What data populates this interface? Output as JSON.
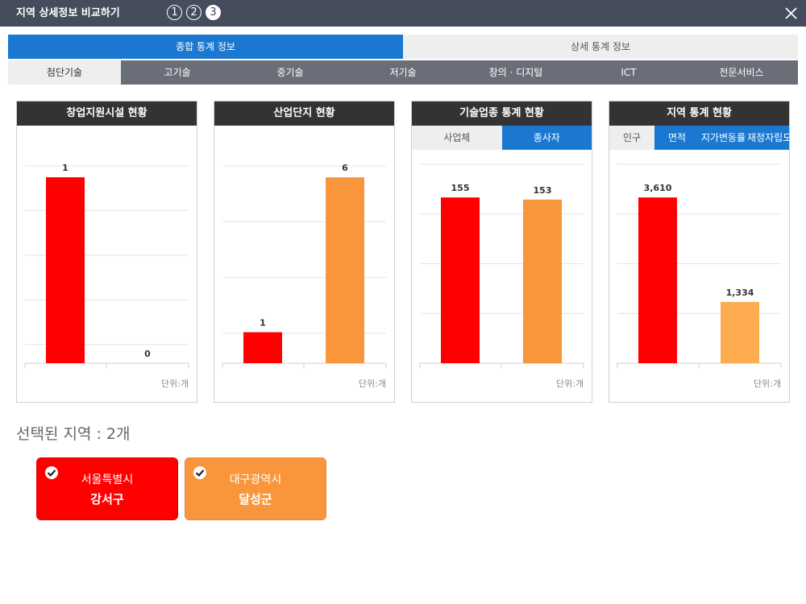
{
  "window": {
    "title": "지역 상세정보 비교하기",
    "steps": [
      "1",
      "2",
      "3"
    ],
    "active_step": 2
  },
  "main_tabs": [
    {
      "label": "종합 통계 정보",
      "active": true
    },
    {
      "label": "상세 통계 정보",
      "active": false
    }
  ],
  "tech_tabs": [
    {
      "label": "첨단기술",
      "active": true
    },
    {
      "label": "고기술",
      "active": false
    },
    {
      "label": "중기술",
      "active": false
    },
    {
      "label": "저기술",
      "active": false
    },
    {
      "label": "창의 · 디지털",
      "active": false
    },
    {
      "label": "ICT",
      "active": false
    },
    {
      "label": "전문서비스",
      "active": false
    }
  ],
  "colors": {
    "region1": "#ff0000",
    "region2": "#f9963c",
    "region2_light": "#fdac50",
    "accent": "#1a78d0"
  },
  "panels": [
    {
      "title": "창업지원시설 현황",
      "unit": "단위:개",
      "subtabs": [],
      "chart_data": {
        "type": "bar",
        "values": [
          1,
          0
        ],
        "value_labels": [
          "1",
          "0"
        ],
        "ylim": [
          0,
          1.2
        ],
        "gridlines": 5
      }
    },
    {
      "title": "산업단지 현황",
      "unit": "단위:개",
      "subtabs": [],
      "chart_data": {
        "type": "bar",
        "values": [
          1,
          6
        ],
        "value_labels": [
          "1",
          "6"
        ],
        "ylim": [
          0,
          7.2
        ],
        "gridlines": 4
      }
    },
    {
      "title": "기술업종 통계 현황",
      "unit": "단위:개",
      "subtabs": [
        {
          "label": "사업체",
          "active": false
        },
        {
          "label": "종사자",
          "active": true
        }
      ],
      "chart_data": {
        "type": "bar",
        "values": [
          155,
          153
        ],
        "value_labels": [
          "155",
          "153"
        ],
        "ylim": [
          0,
          186
        ],
        "gridlines": 4
      }
    },
    {
      "title": "지역 통계 현황",
      "unit": "단위:개",
      "subtabs": [
        {
          "label": "인구",
          "active": false
        },
        {
          "label": "면적",
          "active": true
        },
        {
          "label": "지가변동률",
          "active": true
        },
        {
          "label": "재정자립도",
          "active": true
        }
      ],
      "chart_data": {
        "type": "bar",
        "values": [
          3610,
          1334
        ],
        "value_labels": [
          "3,610",
          "1,334"
        ],
        "ylim": [
          0,
          4332
        ],
        "gridlines": 4
      }
    }
  ],
  "selection": {
    "label": "선택된 지역 : 2개",
    "regions": [
      {
        "city": "서울특별시",
        "district": "강서구"
      },
      {
        "city": "대구광역시",
        "district": "달성군"
      }
    ]
  }
}
